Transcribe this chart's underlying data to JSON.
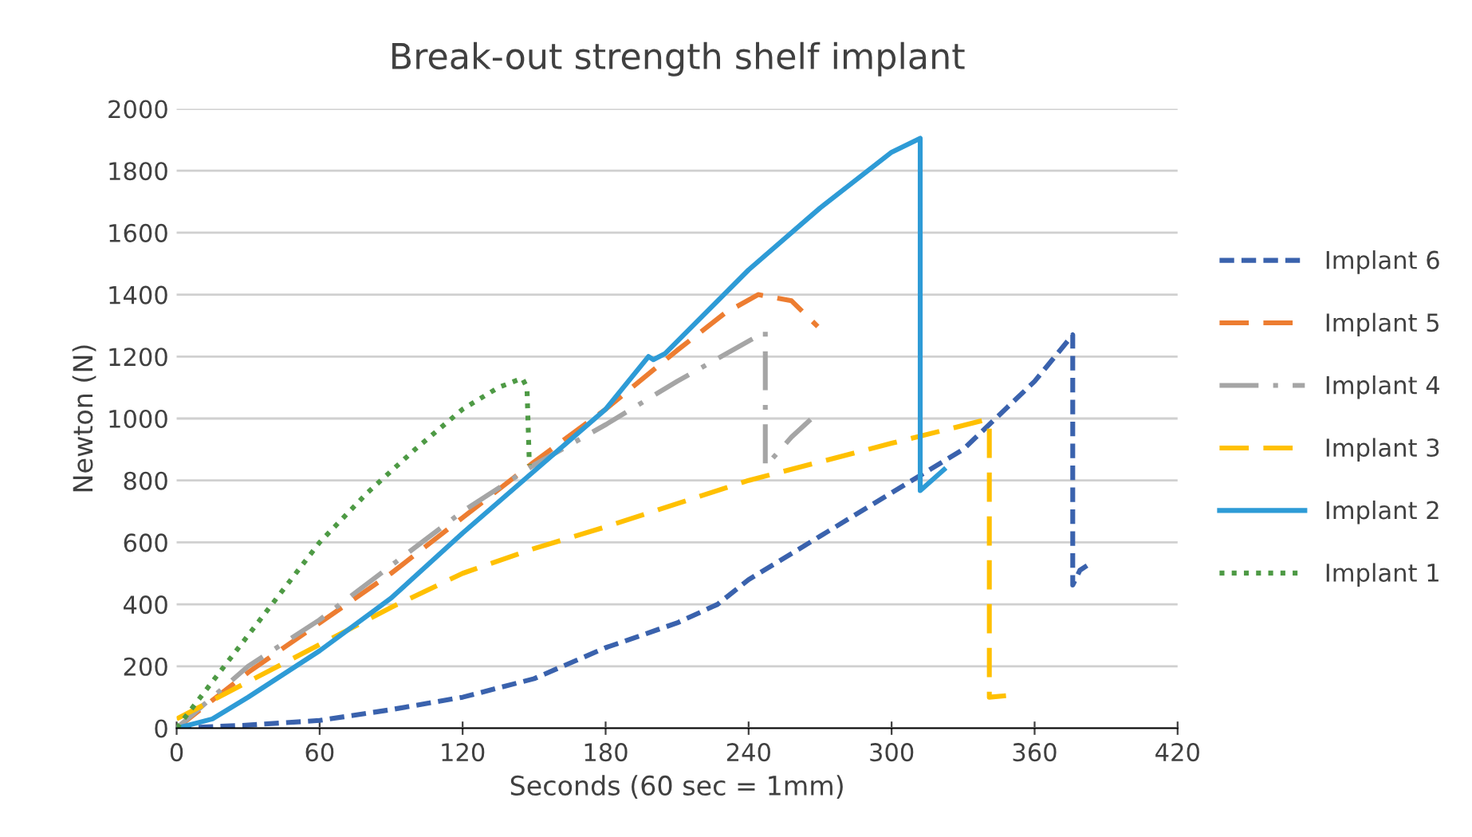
{
  "chart_data": {
    "type": "line",
    "title": "Break-out strength shelf implant",
    "xlabel": "Seconds (60 sec = 1mm)",
    "ylabel": "Newton (N)",
    "xlim": [
      0,
      420
    ],
    "xticks": [
      0,
      60,
      120,
      180,
      240,
      300,
      360,
      420
    ],
    "ylim": [
      0,
      2000
    ],
    "yticks": [
      0,
      200,
      400,
      600,
      800,
      1000,
      1200,
      1400,
      1600,
      1800,
      2000
    ],
    "grid": "y",
    "legend": "right",
    "marker": "none",
    "series": [
      {
        "name": "Implant 6",
        "color": "#3a62ad",
        "line_style": "dashed",
        "x": [
          0,
          30,
          60,
          90,
          120,
          150,
          180,
          210,
          227,
          240,
          270,
          300,
          330,
          360,
          376,
          376,
          379,
          382
        ],
        "values": [
          0,
          10,
          25,
          60,
          100,
          160,
          260,
          340,
          400,
          480,
          620,
          760,
          900,
          1120,
          1270,
          462,
          510,
          525
        ]
      },
      {
        "name": "Implant 5",
        "color": "#ed7d31",
        "line_style": "longdash",
        "x": [
          0,
          30,
          60,
          90,
          120,
          150,
          180,
          210,
          230,
          244,
          258,
          269
        ],
        "values": [
          0,
          180,
          340,
          500,
          680,
          860,
          1030,
          1220,
          1340,
          1400,
          1380,
          1297
        ]
      },
      {
        "name": "Implant 4",
        "color": "#a5a5a5",
        "line_style": "dashdot",
        "x": [
          0,
          30,
          60,
          120,
          150,
          180,
          210,
          240,
          247,
          247,
          258,
          266
        ],
        "values": [
          0,
          200,
          350,
          700,
          850,
          980,
          1120,
          1250,
          1280,
          845,
          940,
          997
        ]
      },
      {
        "name": "Implant 3",
        "color": "#ffc000",
        "line_style": "longdash",
        "x": [
          0,
          30,
          60,
          90,
          120,
          150,
          180,
          240,
          300,
          338,
          341,
          341,
          348
        ],
        "values": [
          30,
          150,
          270,
          390,
          500,
          580,
          650,
          800,
          920,
          993,
          990,
          100,
          105
        ]
      },
      {
        "name": "Implant 2",
        "color": "#2e9bd6",
        "line_style": "solid",
        "x": [
          0,
          15,
          30,
          60,
          90,
          120,
          150,
          180,
          198,
          200,
          205,
          240,
          270,
          300,
          312,
          312,
          322
        ],
        "values": [
          0,
          30,
          100,
          250,
          420,
          630,
          830,
          1030,
          1200,
          1190,
          1210,
          1480,
          1680,
          1860,
          1905,
          767,
          835
        ]
      },
      {
        "name": "Implant 1",
        "color": "#4e9a45",
        "line_style": "dotted",
        "x": [
          0,
          15,
          30,
          45,
          60,
          80,
          100,
          120,
          135,
          145,
          147,
          148
        ],
        "values": [
          0,
          150,
          300,
          450,
          600,
          760,
          900,
          1030,
          1100,
          1130,
          1100,
          850
        ]
      }
    ]
  }
}
